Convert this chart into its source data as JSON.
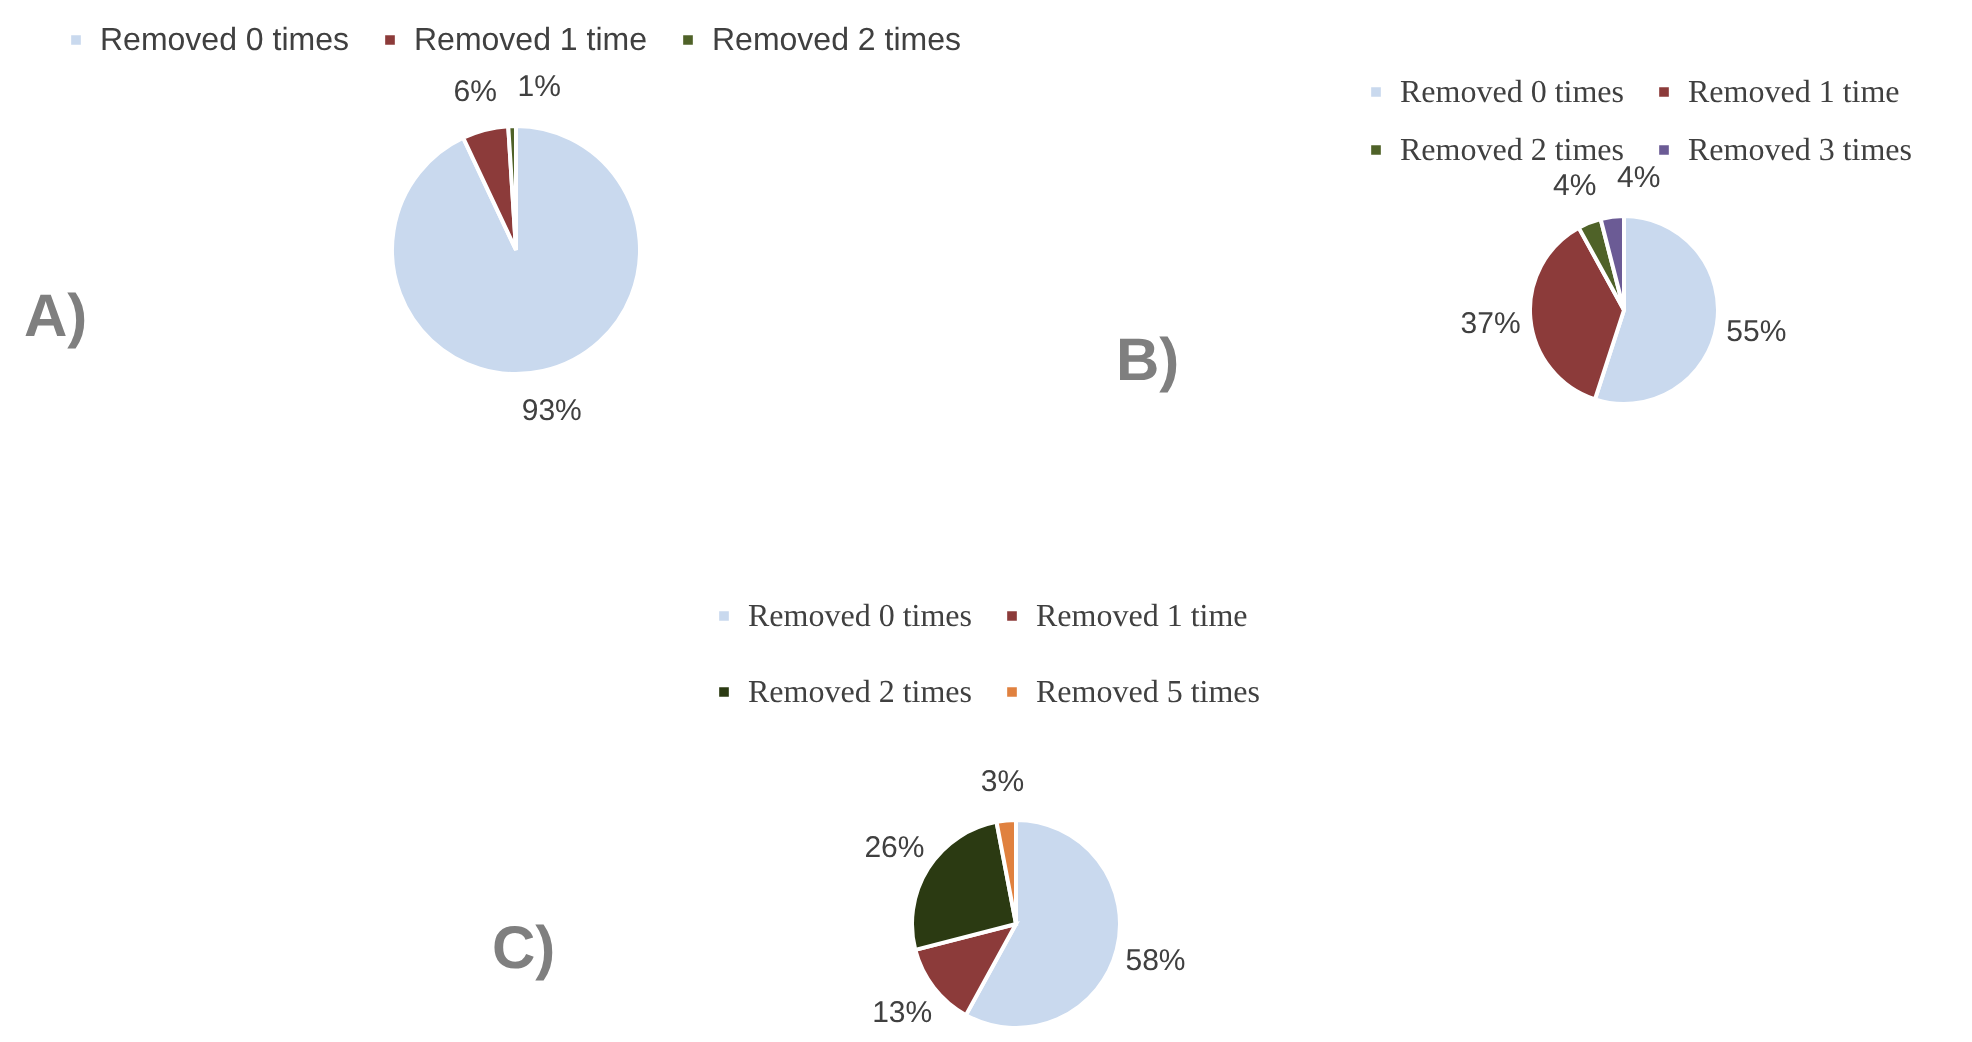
{
  "chart_data": [
    {
      "type": "pie",
      "title": "A)",
      "categories": [
        "Removed 0 times",
        "Removed 1 time",
        "Removed 2 times"
      ],
      "values": [
        93,
        6,
        1
      ],
      "colors": [
        "#c9d9ee",
        "#8c3b3a",
        "#4f6228"
      ],
      "value_labels": [
        "93%",
        "6%",
        "1%"
      ],
      "legend": "top"
    },
    {
      "type": "pie",
      "title": "B)",
      "categories": [
        "Removed 0 times",
        "Removed 1 time",
        "Removed 2 times",
        "Removed 3 times"
      ],
      "values": [
        55,
        37,
        4,
        4
      ],
      "colors": [
        "#c9d9ee",
        "#8c3b3a",
        "#4f6228",
        "#6b5b95"
      ],
      "value_labels": [
        "55%",
        "37%",
        "4%",
        "4%"
      ],
      "legend": "top"
    },
    {
      "type": "pie",
      "title": "C)",
      "categories": [
        "Removed 0 times",
        "Removed 1 time",
        "Removed 2 times",
        "Removed 5 times"
      ],
      "values": [
        58,
        13,
        26,
        3
      ],
      "colors": [
        "#c9d9ee",
        "#8c3b3a",
        "#2b3a12",
        "#e0813f"
      ],
      "value_labels": [
        "58%",
        "13%",
        "26%",
        "3%"
      ],
      "legend": "top"
    }
  ]
}
